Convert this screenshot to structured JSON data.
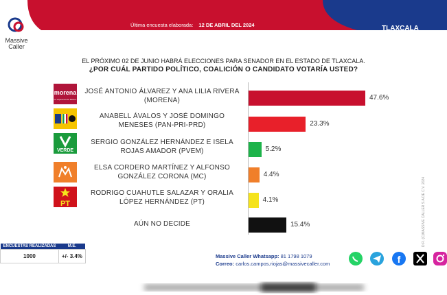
{
  "header": {
    "brand": "Massive Caller",
    "brand_line1": "Massive",
    "brand_line2": "Caller",
    "survey_label": "Última encuesta elaborada:",
    "survey_date": "12 DE ABRIL DEL 2024",
    "state": "TLAXCALA",
    "colors": {
      "red": "#c8102e",
      "navy": "#1a3a8c"
    }
  },
  "question": {
    "line1": "EL PRÓXIMO 02 DE JUNIO HABRÁ ELECCIONES PARA SENADOR EN EL ESTADO DE TLAXCALA.",
    "line2": "¿POR CUÁL PARTIDO POLÍTICO, COALICIÓN O CANDIDATO VOTARÍA USTED?"
  },
  "chart_data": {
    "type": "bar",
    "orientation": "horizontal",
    "categories": [
      "JOSÉ ANTONIO ÁLVAREZ Y ANA LILIA RIVERA (MORENA)",
      "ANABELL ÁVALOS Y JOSÉ DOMINGO MENESES (PAN-PRI-PRD)",
      "SERGIO GONZÁLEZ HERNÁNDEZ  E ISELA ROJAS AMADOR (PVEM)",
      "ELSA CORDERO MARTÍNEZ Y ALFONSO GONZÁLEZ CORONA (MC)",
      "RODRIGO CUAHUTLE SALAZAR Y ORALIA LÓPEZ HERNÁNDEZ (PT)",
      "AÚN NO DECIDE"
    ],
    "values": [
      47.6,
      23.3,
      5.2,
      4.4,
      4.1,
      15.4
    ],
    "labels": [
      "47.6%",
      "23.3%",
      "5.2%",
      "4.4%",
      "4.1%",
      "15.4%"
    ],
    "colors": [
      "#c8102e",
      "#e8202a",
      "#1db34a",
      "#f07f2a",
      "#f5e31c",
      "#111111"
    ],
    "party_logos": [
      "morena",
      "PAN-PRI-PRD",
      "VERDE",
      "MC",
      "PT",
      ""
    ],
    "party_logo_colors": [
      "#b0153a",
      "#f5c400",
      "#1a9b3c",
      "#f07f2a",
      "#d0121b",
      ""
    ],
    "xlim": [
      0,
      50
    ]
  },
  "party_logos": {
    "morena": "morena",
    "morena_sub": "La esperanza de México",
    "verde": "VERDE",
    "pt": "PT"
  },
  "copyright": "D.R. (C)MASSIVE CALLER S.A DE C.V. 2024",
  "info_table": {
    "headers": [
      "ENCUESTAS REALIZADAS",
      "M.E."
    ],
    "values": [
      "1000",
      "+/- 3.4%"
    ]
  },
  "contact": {
    "whatsapp_label": "Massive Caller Whatsapp:",
    "whatsapp_number": "81 1798 1079",
    "email_label": "Correo:",
    "email": "carlos.campos.riojas@massivecaller.com"
  },
  "social_icons": [
    "whatsapp-icon",
    "telegram-icon",
    "facebook-icon",
    "x-icon",
    "instagram-icon"
  ]
}
